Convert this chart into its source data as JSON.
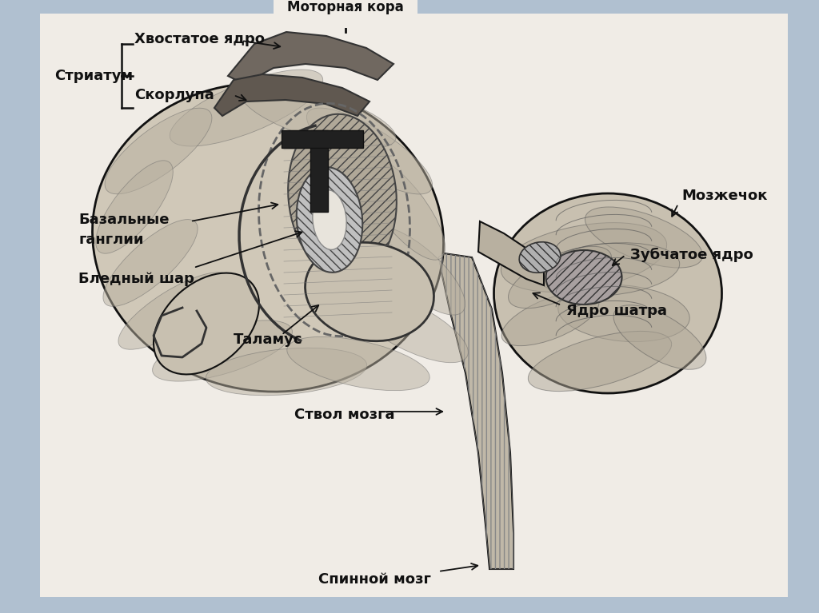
{
  "bg_color": "#b0c0d0",
  "diagram_bg": "#f0ece6",
  "title_top": "Моторная кора",
  "labels": {
    "striatum": "Стриатум",
    "khvostatos": "Хвостатое ядро",
    "skorlupa": "Скорлупа",
    "bazalnyye_line1": "Базальные",
    "bazalnyye_line2": "ганглии",
    "blednyy": "Бледный шар",
    "talamus": "Таламус",
    "stvol": "Ствол мозга",
    "spinnoy": "Спинной мозг",
    "mozzhechok": "Мозжечок",
    "zubchatoe": "Зубчатое ядро",
    "yadro_shatra": "Ядро шатра"
  },
  "font_size": 13,
  "line_color": "#111111",
  "text_color": "#111111"
}
